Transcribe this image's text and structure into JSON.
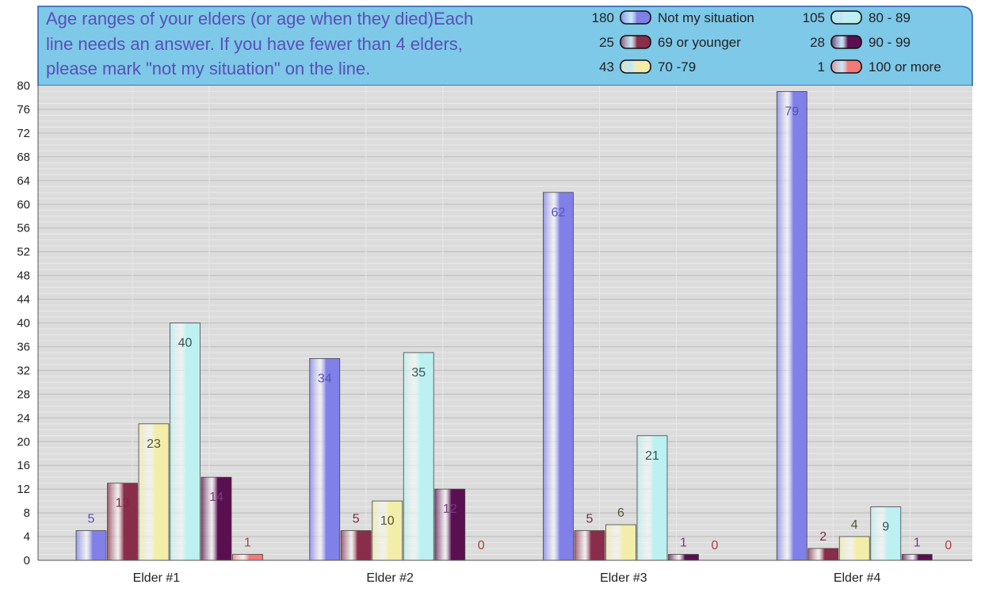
{
  "chart_data": {
    "type": "bar",
    "title_lines": [
      "Age ranges of your elders  (or age when they died)Each",
      "line needs an answer. If you have fewer than 4 elders,",
      "please mark \"not my situation\" on the line."
    ],
    "categories": [
      "Elder #1",
      "Elder #2",
      "Elder #3",
      "Elder #4"
    ],
    "ylim": [
      0,
      80
    ],
    "yticks": [
      0,
      4,
      8,
      12,
      16,
      20,
      24,
      28,
      32,
      36,
      40,
      44,
      48,
      52,
      56,
      60,
      64,
      68,
      72,
      76,
      80
    ],
    "grid": true,
    "legend_position": "top-right",
    "series": [
      {
        "name": "Not my situation",
        "total": "180",
        "color": "#8080e8",
        "label_color": "#5a4fb8",
        "values": [
          5,
          34,
          62,
          79
        ]
      },
      {
        "name": "69 or younger",
        "total": "25",
        "color": "#8a2d4a",
        "label_color": "#7a2a40",
        "values": [
          13,
          5,
          5,
          2
        ]
      },
      {
        "name": "70 -79",
        "total": "43",
        "color": "#f2eeaa",
        "label_color": "#555533",
        "values": [
          23,
          10,
          6,
          4
        ]
      },
      {
        "name": "80 - 89",
        "total": "105",
        "color": "#bdf0f0",
        "label_color": "#335555",
        "values": [
          40,
          35,
          21,
          9
        ]
      },
      {
        "name": "90 - 99",
        "total": "28",
        "color": "#5a0f50",
        "label_color": "#7a3a80",
        "values": [
          14,
          12,
          1,
          1
        ]
      },
      {
        "name": "100 or more",
        "total": "1",
        "color": "#f27a7a",
        "label_color": "#aa4040",
        "values": [
          1,
          0,
          0,
          0
        ]
      }
    ]
  }
}
